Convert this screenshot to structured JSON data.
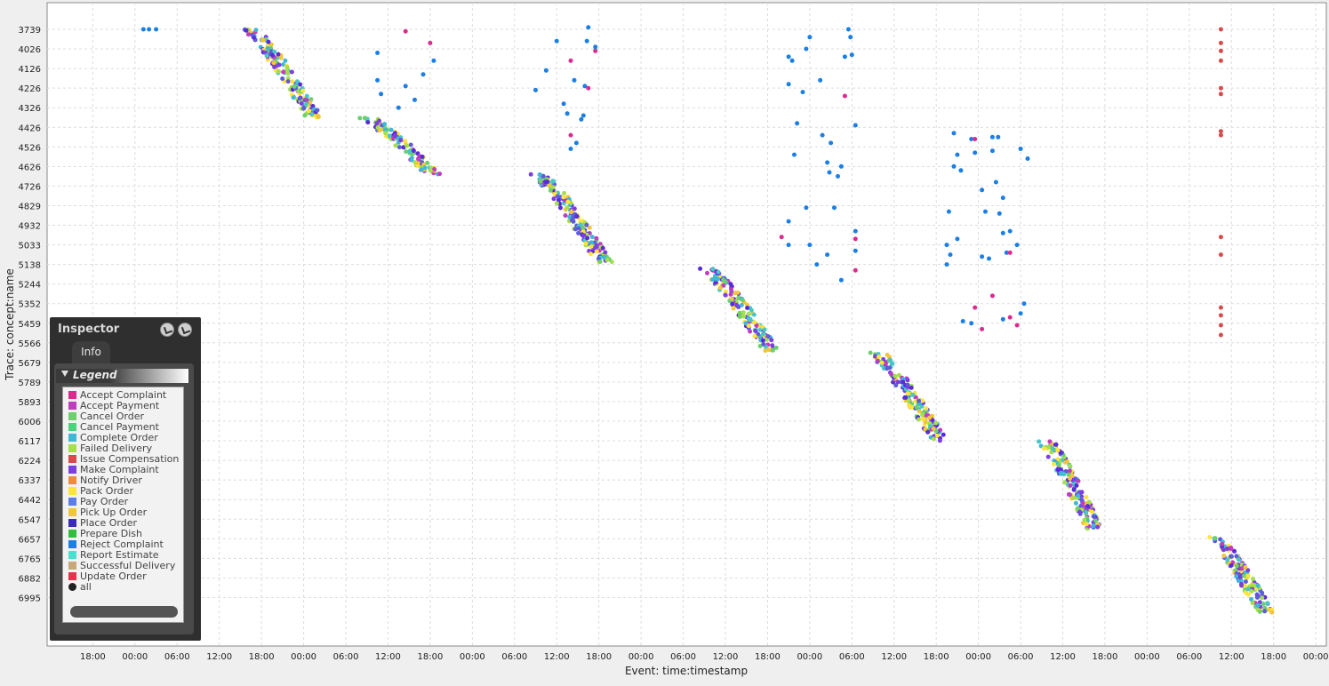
{
  "chart_data": {
    "type": "scatter",
    "xlabel": "Event: time:timestamp",
    "ylabel": "Trace: concept:name",
    "grid": true,
    "x_hours_range": [
      -6.5,
      175.5
    ],
    "x_tick_labels": [
      "18:00",
      "00:00",
      "06:00",
      "12:00",
      "18:00",
      "00:00",
      "06:00",
      "12:00",
      "18:00",
      "00:00",
      "06:00",
      "12:00",
      "18:00",
      "00:00",
      "06:00",
      "12:00",
      "18:00",
      "00:00",
      "06:00",
      "12:00",
      "18:00",
      "00:00",
      "06:00",
      "12:00",
      "18:00",
      "00:00",
      "06:00",
      "12:00",
      "18:00",
      "00:00",
      "06:00"
    ],
    "y_tick_labels": [
      "3739",
      "4026",
      "4126",
      "4226",
      "4326",
      "4426",
      "4526",
      "4626",
      "4726",
      "4829",
      "4932",
      "5033",
      "5138",
      "5244",
      "5352",
      "5459",
      "5566",
      "5679",
      "5789",
      "5893",
      "6006",
      "6117",
      "6224",
      "6337",
      "6442",
      "6547",
      "6657",
      "6765",
      "6882",
      "6995"
    ],
    "bands": [
      {
        "x0": 23.5,
        "x1": 32.5,
        "y0": 0.0,
        "y1": 4.5
      },
      {
        "x0": 40.0,
        "x1": 49.5,
        "y0": 4.5,
        "y1": 7.4
      },
      {
        "x0": 64.5,
        "x1": 74.0,
        "y0": 7.4,
        "y1": 12.0
      },
      {
        "x0": 88.5,
        "x1": 97.5,
        "y0": 12.2,
        "y1": 16.4
      },
      {
        "x0": 112.5,
        "x1": 121.5,
        "y0": 16.5,
        "y1": 21.0
      },
      {
        "x0": 136.5,
        "x1": 143.5,
        "y0": 21.0,
        "y1": 25.5
      },
      {
        "x0": 160.5,
        "x1": 168.0,
        "y0": 25.9,
        "y1": 29.8
      }
    ],
    "sparse_series": [
      {
        "color": "#1a7fe6",
        "points": [
          [
            7.2,
            0.0
          ],
          [
            8.0,
            0.0
          ],
          [
            9.0,
            0.0
          ],
          [
            40.5,
            1.2
          ],
          [
            40.5,
            2.6
          ],
          [
            41.0,
            3.3
          ],
          [
            43.5,
            4.0
          ],
          [
            44.5,
            2.9
          ],
          [
            45.8,
            3.6
          ],
          [
            47.0,
            2.3
          ],
          [
            48.5,
            1.6
          ],
          [
            63.0,
            3.1
          ],
          [
            64.5,
            2.1
          ],
          [
            66.0,
            0.6
          ],
          [
            67.0,
            3.8
          ],
          [
            67.5,
            4.3
          ],
          [
            68.0,
            6.1
          ],
          [
            68.5,
            2.6
          ],
          [
            68.8,
            5.8
          ],
          [
            69.5,
            4.6
          ],
          [
            69.8,
            4.4
          ],
          [
            70.0,
            2.9
          ],
          [
            70.3,
            0.6
          ],
          [
            70.5,
            -0.1
          ],
          [
            71.5,
            0.9
          ],
          [
            99.0,
            1.4
          ],
          [
            99.0,
            2.8
          ],
          [
            99.5,
            1.6
          ],
          [
            99.8,
            6.4
          ],
          [
            100.2,
            4.8
          ],
          [
            101.0,
            3.2
          ],
          [
            101.5,
            1.0
          ],
          [
            102.0,
            0.4
          ],
          [
            103.5,
            2.6
          ],
          [
            103.8,
            5.4
          ],
          [
            104.5,
            6.8
          ],
          [
            104.8,
            7.3
          ],
          [
            105.0,
            5.8
          ],
          [
            105.5,
            9.1
          ],
          [
            106.0,
            7.5
          ],
          [
            106.5,
            7.0
          ],
          [
            107.0,
            1.4
          ],
          [
            107.5,
            0.0
          ],
          [
            107.8,
            0.4
          ],
          [
            108.0,
            1.3
          ],
          [
            108.5,
            10.3
          ],
          [
            108.5,
            11.3
          ],
          [
            108.5,
            4.9
          ],
          [
            99.0,
            11.0
          ],
          [
            99.0,
            9.8
          ],
          [
            101.5,
            9.1
          ],
          [
            102.0,
            11.0
          ],
          [
            103.0,
            12.0
          ],
          [
            104.5,
            11.5
          ],
          [
            106.5,
            12.8
          ],
          [
            122.5,
            7.0
          ],
          [
            122.5,
            5.3
          ],
          [
            123.0,
            6.4
          ],
          [
            123.0,
            10.7
          ],
          [
            123.5,
            7.2
          ],
          [
            123.8,
            14.9
          ],
          [
            125.0,
            5.6
          ],
          [
            125.0,
            15.0
          ],
          [
            125.5,
            6.3
          ],
          [
            126.5,
            8.2
          ],
          [
            126.5,
            11.6
          ],
          [
            127.0,
            9.3
          ],
          [
            127.5,
            11.7
          ],
          [
            128.0,
            6.2
          ],
          [
            128.0,
            5.5
          ],
          [
            128.5,
            7.8
          ],
          [
            128.8,
            5.5
          ],
          [
            129.0,
            9.4
          ],
          [
            129.5,
            8.6
          ],
          [
            129.5,
            10.4
          ],
          [
            129.5,
            14.8
          ],
          [
            130.0,
            11.4
          ],
          [
            130.5,
            10.3
          ],
          [
            131.5,
            11.0
          ],
          [
            132.0,
            6.1
          ],
          [
            132.5,
            14.0
          ],
          [
            132.0,
            14.5
          ],
          [
            133.0,
            6.6
          ],
          [
            121.5,
            12.0
          ],
          [
            121.5,
            11.0
          ],
          [
            122.0,
            11.5
          ],
          [
            121.8,
            9.3
          ]
        ]
      },
      {
        "color": "#dd2a8f",
        "points": [
          [
            44.5,
            0.1
          ],
          [
            48.0,
            0.7
          ],
          [
            68.0,
            1.6
          ],
          [
            70.5,
            3.0
          ],
          [
            68.0,
            5.4
          ],
          [
            71.5,
            1.1
          ],
          [
            98.0,
            10.6
          ],
          [
            107.0,
            3.4
          ],
          [
            108.5,
            10.7
          ],
          [
            108.5,
            12.3
          ],
          [
            125.5,
            5.6
          ],
          [
            125.5,
            14.2
          ],
          [
            128.0,
            13.6
          ],
          [
            130.5,
            11.4
          ],
          [
            130.5,
            14.7
          ],
          [
            131.5,
            15.1
          ],
          [
            126.5,
            15.3
          ]
        ]
      },
      {
        "color": "#d94b4b",
        "points": [
          [
            160.5,
            0.0
          ],
          [
            160.5,
            0.7
          ],
          [
            160.5,
            1.1
          ],
          [
            160.5,
            1.6
          ],
          [
            160.5,
            3.0
          ],
          [
            160.5,
            3.3
          ],
          [
            160.5,
            5.2
          ],
          [
            160.5,
            5.4
          ],
          [
            160.5,
            10.6
          ],
          [
            160.5,
            11.5
          ],
          [
            160.5,
            14.2
          ],
          [
            160.5,
            14.6
          ],
          [
            160.5,
            15.1
          ],
          [
            160.5,
            15.6
          ]
        ]
      }
    ],
    "band_palette": [
      "#7b3fe0",
      "#5a2bd6",
      "#3fb8d8",
      "#49c7c7",
      "#6cd06c",
      "#a4e04a",
      "#ffe43b",
      "#f2c53a",
      "#c23cc0",
      "#5d5ddc"
    ]
  },
  "inspector": {
    "title": "Inspector",
    "tab": "Info",
    "legend_title": "Legend",
    "pin_icon": "pin-icon",
    "unpin_icon": "unpin-icon",
    "legend": [
      {
        "label": "Accept Complaint",
        "color": "#dd2a8f"
      },
      {
        "label": "Accept Payment",
        "color": "#c23cc0"
      },
      {
        "label": "Cancel Order",
        "color": "#6cd06c"
      },
      {
        "label": "Cancel Payment",
        "color": "#49d67a"
      },
      {
        "label": "Complete Order",
        "color": "#3fb8d8"
      },
      {
        "label": "Failed Delivery",
        "color": "#a4e04a"
      },
      {
        "label": "Issue Compensation",
        "color": "#d94b4b"
      },
      {
        "label": "Make Complaint",
        "color": "#7b3fe0"
      },
      {
        "label": "Notify Driver",
        "color": "#f08a3c"
      },
      {
        "label": "Pack Order",
        "color": "#ffe43b"
      },
      {
        "label": "Pay Order",
        "color": "#5d7de8"
      },
      {
        "label": "Pick Up Order",
        "color": "#f2c53a"
      },
      {
        "label": "Place Order",
        "color": "#3a2bb8"
      },
      {
        "label": "Prepare Dish",
        "color": "#2fbf3a"
      },
      {
        "label": "Reject Complaint",
        "color": "#1a7fe6"
      },
      {
        "label": "Report Estimate",
        "color": "#49e0d0"
      },
      {
        "label": "Successful Delivery",
        "color": "#c8a77a"
      },
      {
        "label": "Update Order",
        "color": "#e8324b"
      },
      {
        "label": "all",
        "color": "#222222"
      }
    ]
  }
}
